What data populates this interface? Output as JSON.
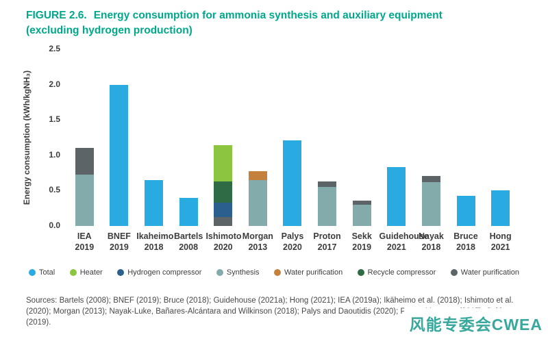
{
  "title": {
    "prefix": "FIGURE 2.6.",
    "text": "Energy consumption for ammonia synthesis and auxiliary equipment",
    "line2": "(excluding hydrogen production)",
    "color": "#00A88B"
  },
  "chart_data": {
    "type": "bar",
    "stacked": true,
    "title": "Energy consumption for ammonia synthesis and auxiliary equipment (excluding hydrogen production)",
    "xlabel": "",
    "ylabel": "Energy consumption (kWh/kgNH₃)",
    "ylim": [
      0,
      2.5
    ],
    "yticks": [
      0,
      0.5,
      1,
      1.5,
      2,
      2.5
    ],
    "grid": false,
    "legend_position": "bottom",
    "legend": [
      {
        "key": "total",
        "label": "Total",
        "color": "#29ABE2"
      },
      {
        "key": "heater",
        "label": "Heater",
        "color": "#8CC540"
      },
      {
        "key": "hydrogen_compressor",
        "label": "Hydrogen compressor",
        "color": "#2B5F8E"
      },
      {
        "key": "synthesis",
        "label": "Synthesis",
        "color": "#83ABAB"
      },
      {
        "key": "water_purification",
        "label": "Water purification",
        "color": "#C4813D"
      },
      {
        "key": "recycle_compressor",
        "label": "Recycle compressor",
        "color": "#2F6B45"
      },
      {
        "key": "water_purification_gray",
        "label": "Water purification",
        "color": "#5C6468"
      }
    ],
    "bars": [
      {
        "label": "IEA",
        "year": "2019",
        "total": 1.11,
        "segments": [
          {
            "key": "synthesis",
            "value": 0.73
          },
          {
            "key": "water_purification_gray",
            "value": 0.38
          }
        ]
      },
      {
        "label": "BNEF",
        "year": "2019",
        "total": 2.0,
        "segments": [
          {
            "key": "total",
            "value": 2.0
          }
        ]
      },
      {
        "label": "Ikaheimo",
        "year": "2018",
        "total": 0.65,
        "segments": [
          {
            "key": "total",
            "value": 0.65
          }
        ]
      },
      {
        "label": "Bartels",
        "year": "2008",
        "total": 0.4,
        "segments": [
          {
            "key": "total",
            "value": 0.4
          }
        ]
      },
      {
        "label": "Ishimoto",
        "year": "2020",
        "total": 1.14,
        "segments": [
          {
            "key": "water_purification_gray",
            "value": 0.13
          },
          {
            "key": "hydrogen_compressor",
            "value": 0.2
          },
          {
            "key": "recycle_compressor",
            "value": 0.3
          },
          {
            "key": "heater",
            "value": 0.51
          }
        ]
      },
      {
        "label": "Morgan",
        "year": "2013",
        "total": 0.78,
        "segments": [
          {
            "key": "synthesis",
            "value": 0.65
          },
          {
            "key": "water_purification",
            "value": 0.13
          }
        ]
      },
      {
        "label": "Palys",
        "year": "2020",
        "total": 1.21,
        "segments": [
          {
            "key": "total",
            "value": 1.21
          }
        ]
      },
      {
        "label": "Proton",
        "year": "2017",
        "total": 0.63,
        "segments": [
          {
            "key": "synthesis",
            "value": 0.55
          },
          {
            "key": "water_purification_gray",
            "value": 0.08
          }
        ]
      },
      {
        "label": "Sekk",
        "year": "2019",
        "total": 0.36,
        "segments": [
          {
            "key": "synthesis",
            "value": 0.3
          },
          {
            "key": "water_purification_gray",
            "value": 0.06
          }
        ]
      },
      {
        "label": "Guidehouse",
        "year": "2021",
        "total": 0.83,
        "segments": [
          {
            "key": "total",
            "value": 0.83
          }
        ]
      },
      {
        "label": "Nayak",
        "year": "2018",
        "total": 0.71,
        "segments": [
          {
            "key": "synthesis",
            "value": 0.62
          },
          {
            "key": "water_purification_gray",
            "value": 0.09
          }
        ]
      },
      {
        "label": "Bruce",
        "year": "2018",
        "total": 0.43,
        "segments": [
          {
            "key": "total",
            "value": 0.43
          }
        ]
      },
      {
        "label": "Hong",
        "year": "2021",
        "total": 0.5,
        "segments": [
          {
            "key": "total",
            "value": 0.5
          }
        ]
      }
    ]
  },
  "sources": "Sources: Bartels (2008); BNEF (2019); Bruce (2018); Guidehouse (2021a); Hong (2021); IEA (2019a); Ikäheimo et al. (2018); Ishimoto et al. (2020); Morgan (2013); Nayak-Luke, Bañares-Alcántara and Wilkinson (2018); Palys and Daoutidis (2020); Proton Ventures (2017); Sekkesæter (2019).",
  "watermark": {
    "text": "风能专委会CWEA",
    "color": "#38A89D"
  }
}
